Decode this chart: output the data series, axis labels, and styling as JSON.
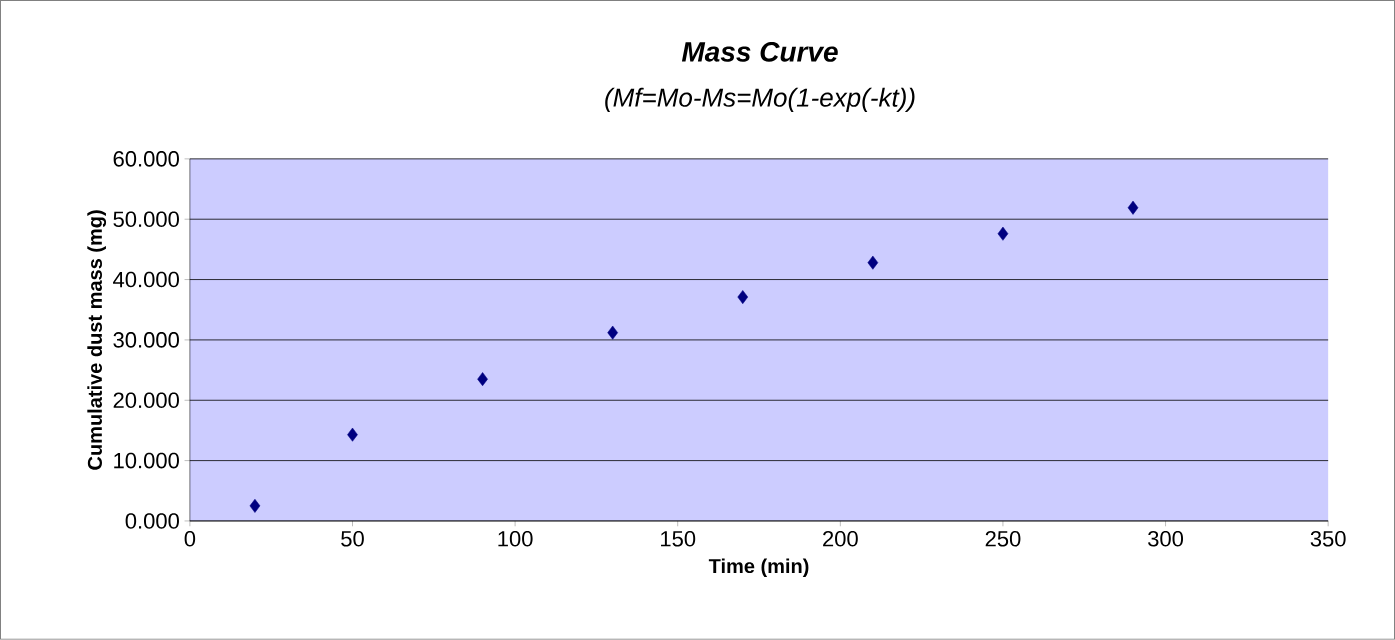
{
  "chart_data": {
    "type": "scatter",
    "title": "Mass Curve",
    "subtitle": "(Mf=Mo-Ms=Mo(1-exp(-kt))",
    "xlabel": "Time (min)",
    "ylabel": "Cumulative dust mass (mg)",
    "x": [
      20,
      50,
      90,
      130,
      170,
      210,
      250,
      290
    ],
    "values": [
      2.5,
      14.3,
      23.5,
      31.2,
      37.1,
      42.8,
      47.6,
      51.9
    ],
    "color": "#000080",
    "marker": "diamond",
    "grid": "y",
    "xlim": [
      0,
      350
    ],
    "xticks": [
      0,
      50,
      100,
      150,
      200,
      250,
      300,
      350
    ],
    "ylim": [
      0,
      60
    ],
    "yticks": [
      {
        "value": 0,
        "label": "0.000"
      },
      {
        "value": 10,
        "label": "10.000"
      },
      {
        "value": 20,
        "label": "20.000"
      },
      {
        "value": 30,
        "label": "30.000"
      },
      {
        "value": 40,
        "label": "40.000"
      },
      {
        "value": 50,
        "label": "50.000"
      },
      {
        "value": 60,
        "label": "60.000"
      }
    ]
  }
}
